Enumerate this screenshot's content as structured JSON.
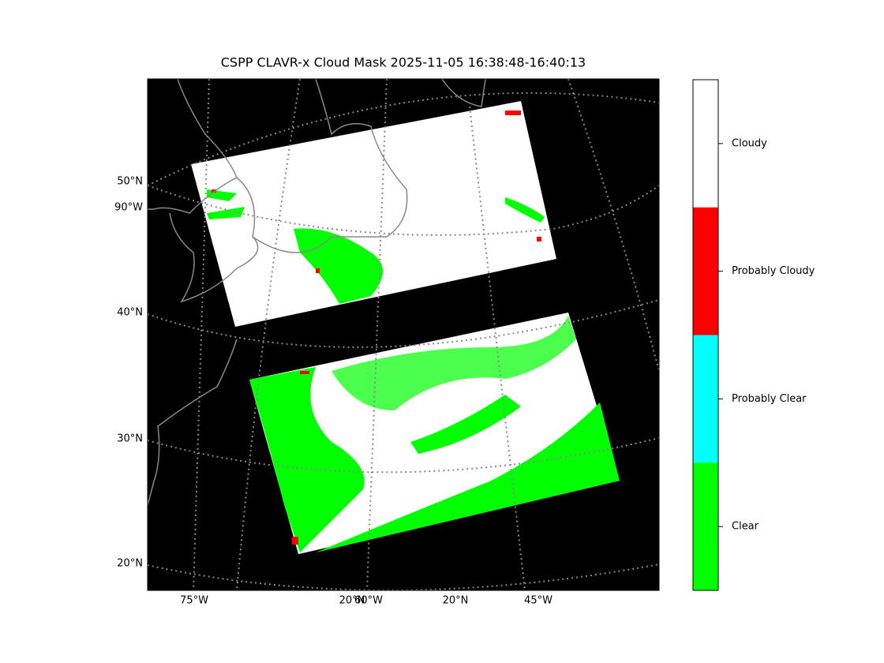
{
  "title": "CSPP CLAVR-x Cloud Mask 2025-11-05 16:38:48-16:40:13",
  "map": {
    "left_labels": [
      "50°N",
      "90°W",
      "40°N",
      "30°N",
      "20°N"
    ],
    "bottom_labels": [
      "75°W",
      "20°N",
      "60°W",
      "20°N",
      "45°W"
    ]
  },
  "colorbar": {
    "categories": [
      {
        "label": "Cloudy",
        "color": "#ffffff"
      },
      {
        "label": "Probably Cloudy",
        "color": "#ff0000"
      },
      {
        "label": "Probably Clear",
        "color": "#00ffff"
      },
      {
        "label": "Clear",
        "color": "#00ff00"
      }
    ]
  }
}
